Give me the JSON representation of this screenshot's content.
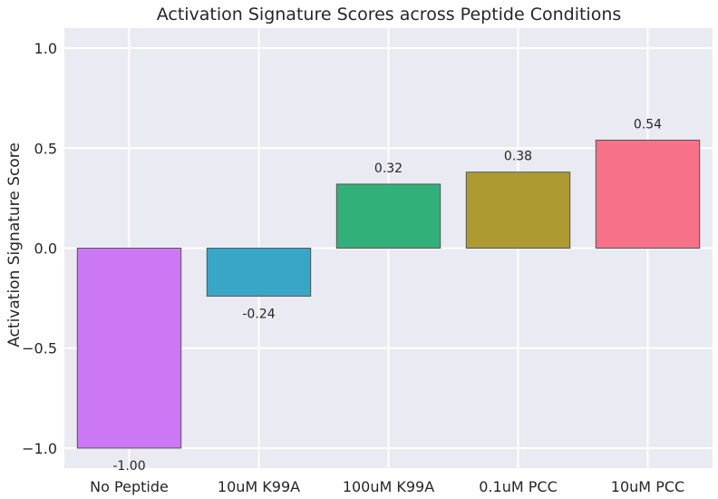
{
  "chart_data": {
    "type": "bar",
    "title": "Activation Signature Scores across Peptide Conditions",
    "xlabel": "",
    "ylabel": "Activation Signature Score",
    "categories": [
      "No Peptide",
      "10uM K99A",
      "100uM K99A",
      "0.1uM PCC",
      "10uM PCC"
    ],
    "values": [
      -1.0,
      -0.24,
      0.32,
      0.38,
      0.54
    ],
    "value_labels": [
      "-1.00",
      "-0.24",
      "0.32",
      "0.38",
      "0.54"
    ],
    "colors": [
      "#cc78f4",
      "#3aa6c7",
      "#32b079",
      "#ad9b31",
      "#f77189"
    ],
    "ylim": [
      -1.1,
      1.1
    ],
    "yticks": [
      -1.0,
      -0.5,
      0.0,
      0.5,
      1.0
    ],
    "ytick_labels": [
      "−1.0",
      "−0.5",
      "0.0",
      "0.5",
      "1.0"
    ],
    "grid": true,
    "background": "#eaeaf2"
  }
}
